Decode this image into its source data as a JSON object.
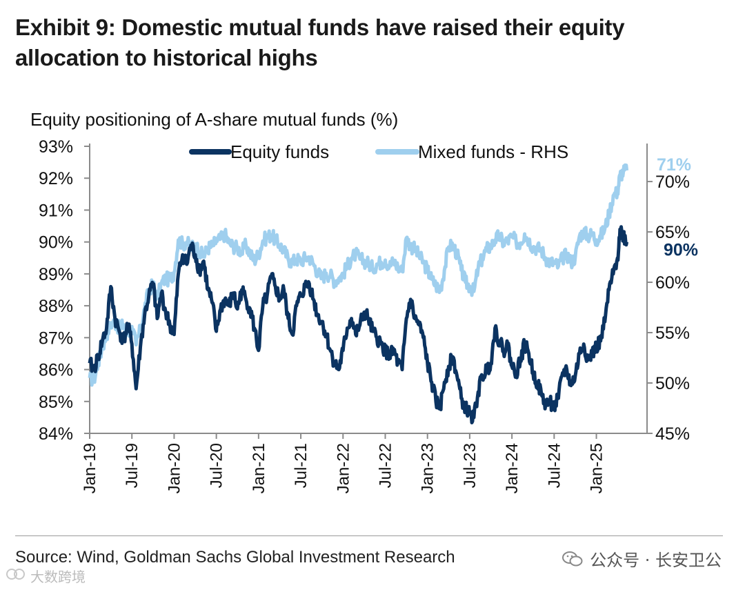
{
  "title": "Exhibit 9: Domestic mutual funds have raised their equity allocation to historical highs",
  "footer": {
    "source": "Source: Wind, Goldman Sachs Global Investment Research",
    "watermark_right": "公众号 · 长安卫公",
    "watermark_left": "大数跨境"
  },
  "colors": {
    "equity": "#0b3361",
    "mixed": "#9fcfee",
    "axis": "#8a8a8a"
  },
  "chart_data": {
    "type": "line",
    "title": "Equity positioning of A-share mutual funds (%)",
    "legend": [
      "Equity funds",
      "Mixed funds - RHS"
    ],
    "legend_position": "top-center",
    "x_tick_labels": [
      "Jan-19",
      "Jul-19",
      "Jan-20",
      "Jul-20",
      "Jan-21",
      "Jul-21",
      "Jan-22",
      "Jul-22",
      "Jan-23",
      "Jul-23",
      "Jan-24",
      "Jul-24",
      "Jan-25"
    ],
    "x_range": [
      2019.0,
      2025.6
    ],
    "y_left": {
      "range": [
        84,
        93
      ],
      "ticks": [
        84,
        85,
        86,
        87,
        88,
        89,
        90,
        91,
        92,
        93
      ],
      "tick_labels": [
        "84%",
        "85%",
        "86%",
        "87%",
        "88%",
        "89%",
        "90%",
        "91%",
        "92%",
        "93%"
      ]
    },
    "y_right": {
      "range": [
        45,
        73.5
      ],
      "ticks": [
        45,
        50,
        55,
        60,
        65,
        70
      ],
      "tick_labels": [
        "45%",
        "50%",
        "55%",
        "60%",
        "65%",
        "70%"
      ]
    },
    "end_labels": {
      "equity": "90%",
      "mixed": "71%"
    },
    "series": [
      {
        "name": "Equity funds",
        "axis": "left",
        "points": [
          [
            2019.0,
            86.2
          ],
          [
            2019.05,
            86.0
          ],
          [
            2019.1,
            86.4
          ],
          [
            2019.15,
            86.9
          ],
          [
            2019.2,
            87.3
          ],
          [
            2019.25,
            88.6
          ],
          [
            2019.3,
            87.6
          ],
          [
            2019.35,
            87.2
          ],
          [
            2019.4,
            86.9
          ],
          [
            2019.45,
            87.4
          ],
          [
            2019.5,
            86.8
          ],
          [
            2019.55,
            85.4
          ],
          [
            2019.6,
            86.7
          ],
          [
            2019.65,
            87.7
          ],
          [
            2019.7,
            88.3
          ],
          [
            2019.75,
            88.7
          ],
          [
            2019.8,
            87.6
          ],
          [
            2019.85,
            88.4
          ],
          [
            2019.9,
            87.8
          ],
          [
            2019.95,
            87.4
          ],
          [
            2020.0,
            87.1
          ],
          [
            2020.05,
            89.0
          ],
          [
            2020.1,
            89.6
          ],
          [
            2020.15,
            89.3
          ],
          [
            2020.2,
            89.9
          ],
          [
            2020.25,
            89.6
          ],
          [
            2020.3,
            89.1
          ],
          [
            2020.35,
            89.4
          ],
          [
            2020.4,
            88.5
          ],
          [
            2020.45,
            88.1
          ],
          [
            2020.5,
            87.2
          ],
          [
            2020.55,
            87.9
          ],
          [
            2020.6,
            88.2
          ],
          [
            2020.65,
            88.0
          ],
          [
            2020.7,
            88.4
          ],
          [
            2020.75,
            87.9
          ],
          [
            2020.8,
            88.5
          ],
          [
            2020.85,
            88.2
          ],
          [
            2020.9,
            87.9
          ],
          [
            2020.95,
            87.3
          ],
          [
            2021.0,
            86.6
          ],
          [
            2021.05,
            88.0
          ],
          [
            2021.1,
            88.3
          ],
          [
            2021.15,
            88.9
          ],
          [
            2021.2,
            88.6
          ],
          [
            2021.25,
            88.2
          ],
          [
            2021.3,
            88.5
          ],
          [
            2021.35,
            87.6
          ],
          [
            2021.4,
            87.1
          ],
          [
            2021.45,
            88.0
          ],
          [
            2021.5,
            88.3
          ],
          [
            2021.55,
            88.6
          ],
          [
            2021.6,
            88.7
          ],
          [
            2021.65,
            88.2
          ],
          [
            2021.7,
            87.7
          ],
          [
            2021.75,
            87.5
          ],
          [
            2021.8,
            87.1
          ],
          [
            2021.85,
            86.6
          ],
          [
            2021.9,
            86.2
          ],
          [
            2021.95,
            86.0
          ],
          [
            2022.0,
            86.6
          ],
          [
            2022.05,
            87.3
          ],
          [
            2022.1,
            87.6
          ],
          [
            2022.15,
            87.1
          ],
          [
            2022.2,
            87.4
          ],
          [
            2022.25,
            87.8
          ],
          [
            2022.3,
            87.6
          ],
          [
            2022.35,
            87.2
          ],
          [
            2022.4,
            87.0
          ],
          [
            2022.45,
            86.8
          ],
          [
            2022.5,
            86.6
          ],
          [
            2022.55,
            86.4
          ],
          [
            2022.6,
            86.6
          ],
          [
            2022.65,
            86.2
          ],
          [
            2022.7,
            86.0
          ],
          [
            2022.75,
            87.6
          ],
          [
            2022.8,
            88.2
          ],
          [
            2022.85,
            87.6
          ],
          [
            2022.9,
            87.4
          ],
          [
            2022.95,
            87.0
          ],
          [
            2023.0,
            86.2
          ],
          [
            2023.05,
            85.6
          ],
          [
            2023.1,
            85.0
          ],
          [
            2023.15,
            84.8
          ],
          [
            2023.2,
            85.6
          ],
          [
            2023.25,
            86.1
          ],
          [
            2023.3,
            86.4
          ],
          [
            2023.35,
            85.8
          ],
          [
            2023.4,
            85.1
          ],
          [
            2023.45,
            84.8
          ],
          [
            2023.5,
            84.6
          ],
          [
            2023.55,
            84.5
          ],
          [
            2023.6,
            85.3
          ],
          [
            2023.65,
            85.8
          ],
          [
            2023.7,
            86.0
          ],
          [
            2023.75,
            86.2
          ],
          [
            2023.8,
            87.3
          ],
          [
            2023.85,
            86.9
          ],
          [
            2023.9,
            86.6
          ],
          [
            2023.95,
            86.8
          ],
          [
            2024.0,
            86.1
          ],
          [
            2024.05,
            85.9
          ],
          [
            2024.1,
            86.3
          ],
          [
            2024.15,
            86.8
          ],
          [
            2024.2,
            86.5
          ],
          [
            2024.25,
            85.9
          ],
          [
            2024.3,
            85.6
          ],
          [
            2024.35,
            85.2
          ],
          [
            2024.4,
            84.9
          ],
          [
            2024.45,
            85.0
          ],
          [
            2024.5,
            84.8
          ],
          [
            2024.55,
            85.1
          ],
          [
            2024.6,
            85.9
          ],
          [
            2024.65,
            86.0
          ],
          [
            2024.7,
            85.5
          ],
          [
            2024.75,
            85.8
          ],
          [
            2024.8,
            86.5
          ],
          [
            2024.85,
            86.8
          ],
          [
            2024.9,
            86.3
          ],
          [
            2024.95,
            86.5
          ],
          [
            2025.0,
            86.7
          ],
          [
            2025.05,
            86.9
          ],
          [
            2025.1,
            87.5
          ],
          [
            2025.15,
            88.5
          ],
          [
            2025.2,
            89.0
          ],
          [
            2025.25,
            89.5
          ],
          [
            2025.28,
            90.4
          ],
          [
            2025.32,
            90.2
          ],
          [
            2025.36,
            90.0
          ]
        ]
      },
      {
        "name": "Mixed funds - RHS",
        "axis": "right",
        "points": [
          [
            2019.0,
            50.5
          ],
          [
            2019.05,
            50.3
          ],
          [
            2019.1,
            52.0
          ],
          [
            2019.15,
            53.5
          ],
          [
            2019.2,
            54.8
          ],
          [
            2019.25,
            55.9
          ],
          [
            2019.3,
            56.0
          ],
          [
            2019.35,
            55.4
          ],
          [
            2019.4,
            55.8
          ],
          [
            2019.45,
            54.8
          ],
          [
            2019.5,
            55.6
          ],
          [
            2019.55,
            53.8
          ],
          [
            2019.6,
            55.3
          ],
          [
            2019.65,
            57.4
          ],
          [
            2019.7,
            59.2
          ],
          [
            2019.75,
            59.8
          ],
          [
            2019.8,
            58.4
          ],
          [
            2019.85,
            59.9
          ],
          [
            2019.9,
            60.4
          ],
          [
            2019.95,
            60.2
          ],
          [
            2020.0,
            61.0
          ],
          [
            2020.05,
            64.2
          ],
          [
            2020.1,
            63.8
          ],
          [
            2020.15,
            64.0
          ],
          [
            2020.2,
            63.4
          ],
          [
            2020.25,
            63.8
          ],
          [
            2020.3,
            63.0
          ],
          [
            2020.35,
            62.6
          ],
          [
            2020.4,
            63.4
          ],
          [
            2020.45,
            63.6
          ],
          [
            2020.5,
            64.1
          ],
          [
            2020.55,
            64.3
          ],
          [
            2020.6,
            64.8
          ],
          [
            2020.65,
            63.9
          ],
          [
            2020.7,
            63.6
          ],
          [
            2020.75,
            63.4
          ],
          [
            2020.8,
            63.0
          ],
          [
            2020.85,
            63.7
          ],
          [
            2020.9,
            62.8
          ],
          [
            2020.95,
            62.2
          ],
          [
            2021.0,
            62.8
          ],
          [
            2021.05,
            64.1
          ],
          [
            2021.1,
            64.5
          ],
          [
            2021.15,
            64.7
          ],
          [
            2021.2,
            64.2
          ],
          [
            2021.25,
            63.7
          ],
          [
            2021.3,
            63.2
          ],
          [
            2021.35,
            62.3
          ],
          [
            2021.4,
            62.0
          ],
          [
            2021.45,
            62.3
          ],
          [
            2021.5,
            62.1
          ],
          [
            2021.55,
            62.4
          ],
          [
            2021.6,
            62.5
          ],
          [
            2021.65,
            61.8
          ],
          [
            2021.7,
            61.0
          ],
          [
            2021.75,
            60.4
          ],
          [
            2021.8,
            60.9
          ],
          [
            2021.85,
            60.7
          ],
          [
            2021.9,
            60.1
          ],
          [
            2021.95,
            60.4
          ],
          [
            2022.0,
            60.8
          ],
          [
            2022.05,
            61.6
          ],
          [
            2022.1,
            62.4
          ],
          [
            2022.15,
            62.8
          ],
          [
            2022.2,
            62.3
          ],
          [
            2022.25,
            62.1
          ],
          [
            2022.3,
            61.9
          ],
          [
            2022.35,
            61.4
          ],
          [
            2022.4,
            61.8
          ],
          [
            2022.45,
            62.0
          ],
          [
            2022.5,
            62.2
          ],
          [
            2022.55,
            61.6
          ],
          [
            2022.6,
            62.1
          ],
          [
            2022.65,
            61.5
          ],
          [
            2022.7,
            61.1
          ],
          [
            2022.75,
            64.4
          ],
          [
            2022.8,
            63.6
          ],
          [
            2022.85,
            63.3
          ],
          [
            2022.9,
            62.6
          ],
          [
            2022.95,
            62.0
          ],
          [
            2023.0,
            61.2
          ],
          [
            2023.05,
            60.3
          ],
          [
            2023.1,
            59.7
          ],
          [
            2023.15,
            59.2
          ],
          [
            2023.2,
            61.2
          ],
          [
            2023.25,
            63.5
          ],
          [
            2023.3,
            63.7
          ],
          [
            2023.35,
            62.8
          ],
          [
            2023.4,
            61.2
          ],
          [
            2023.45,
            60.0
          ],
          [
            2023.5,
            59.6
          ],
          [
            2023.55,
            59.1
          ],
          [
            2023.6,
            61.4
          ],
          [
            2023.65,
            62.4
          ],
          [
            2023.7,
            63.3
          ],
          [
            2023.75,
            63.6
          ],
          [
            2023.8,
            64.2
          ],
          [
            2023.85,
            64.6
          ],
          [
            2023.9,
            63.9
          ],
          [
            2023.95,
            64.1
          ],
          [
            2024.0,
            64.5
          ],
          [
            2024.05,
            64.0
          ],
          [
            2024.1,
            63.9
          ],
          [
            2024.15,
            64.8
          ],
          [
            2024.2,
            64.2
          ],
          [
            2024.25,
            63.5
          ],
          [
            2024.3,
            63.4
          ],
          [
            2024.35,
            63.2
          ],
          [
            2024.4,
            62.4
          ],
          [
            2024.45,
            62.0
          ],
          [
            2024.5,
            61.9
          ],
          [
            2024.55,
            61.6
          ],
          [
            2024.6,
            62.4
          ],
          [
            2024.65,
            62.8
          ],
          [
            2024.7,
            62.0
          ],
          [
            2024.75,
            62.5
          ],
          [
            2024.8,
            64.6
          ],
          [
            2024.85,
            65.0
          ],
          [
            2024.9,
            64.6
          ],
          [
            2024.95,
            64.8
          ],
          [
            2025.0,
            64.2
          ],
          [
            2025.05,
            64.6
          ],
          [
            2025.1,
            65.3
          ],
          [
            2025.15,
            66.8
          ],
          [
            2025.2,
            68.6
          ],
          [
            2025.25,
            69.0
          ],
          [
            2025.28,
            70.6
          ],
          [
            2025.32,
            71.0
          ],
          [
            2025.36,
            71.1
          ]
        ]
      }
    ]
  }
}
